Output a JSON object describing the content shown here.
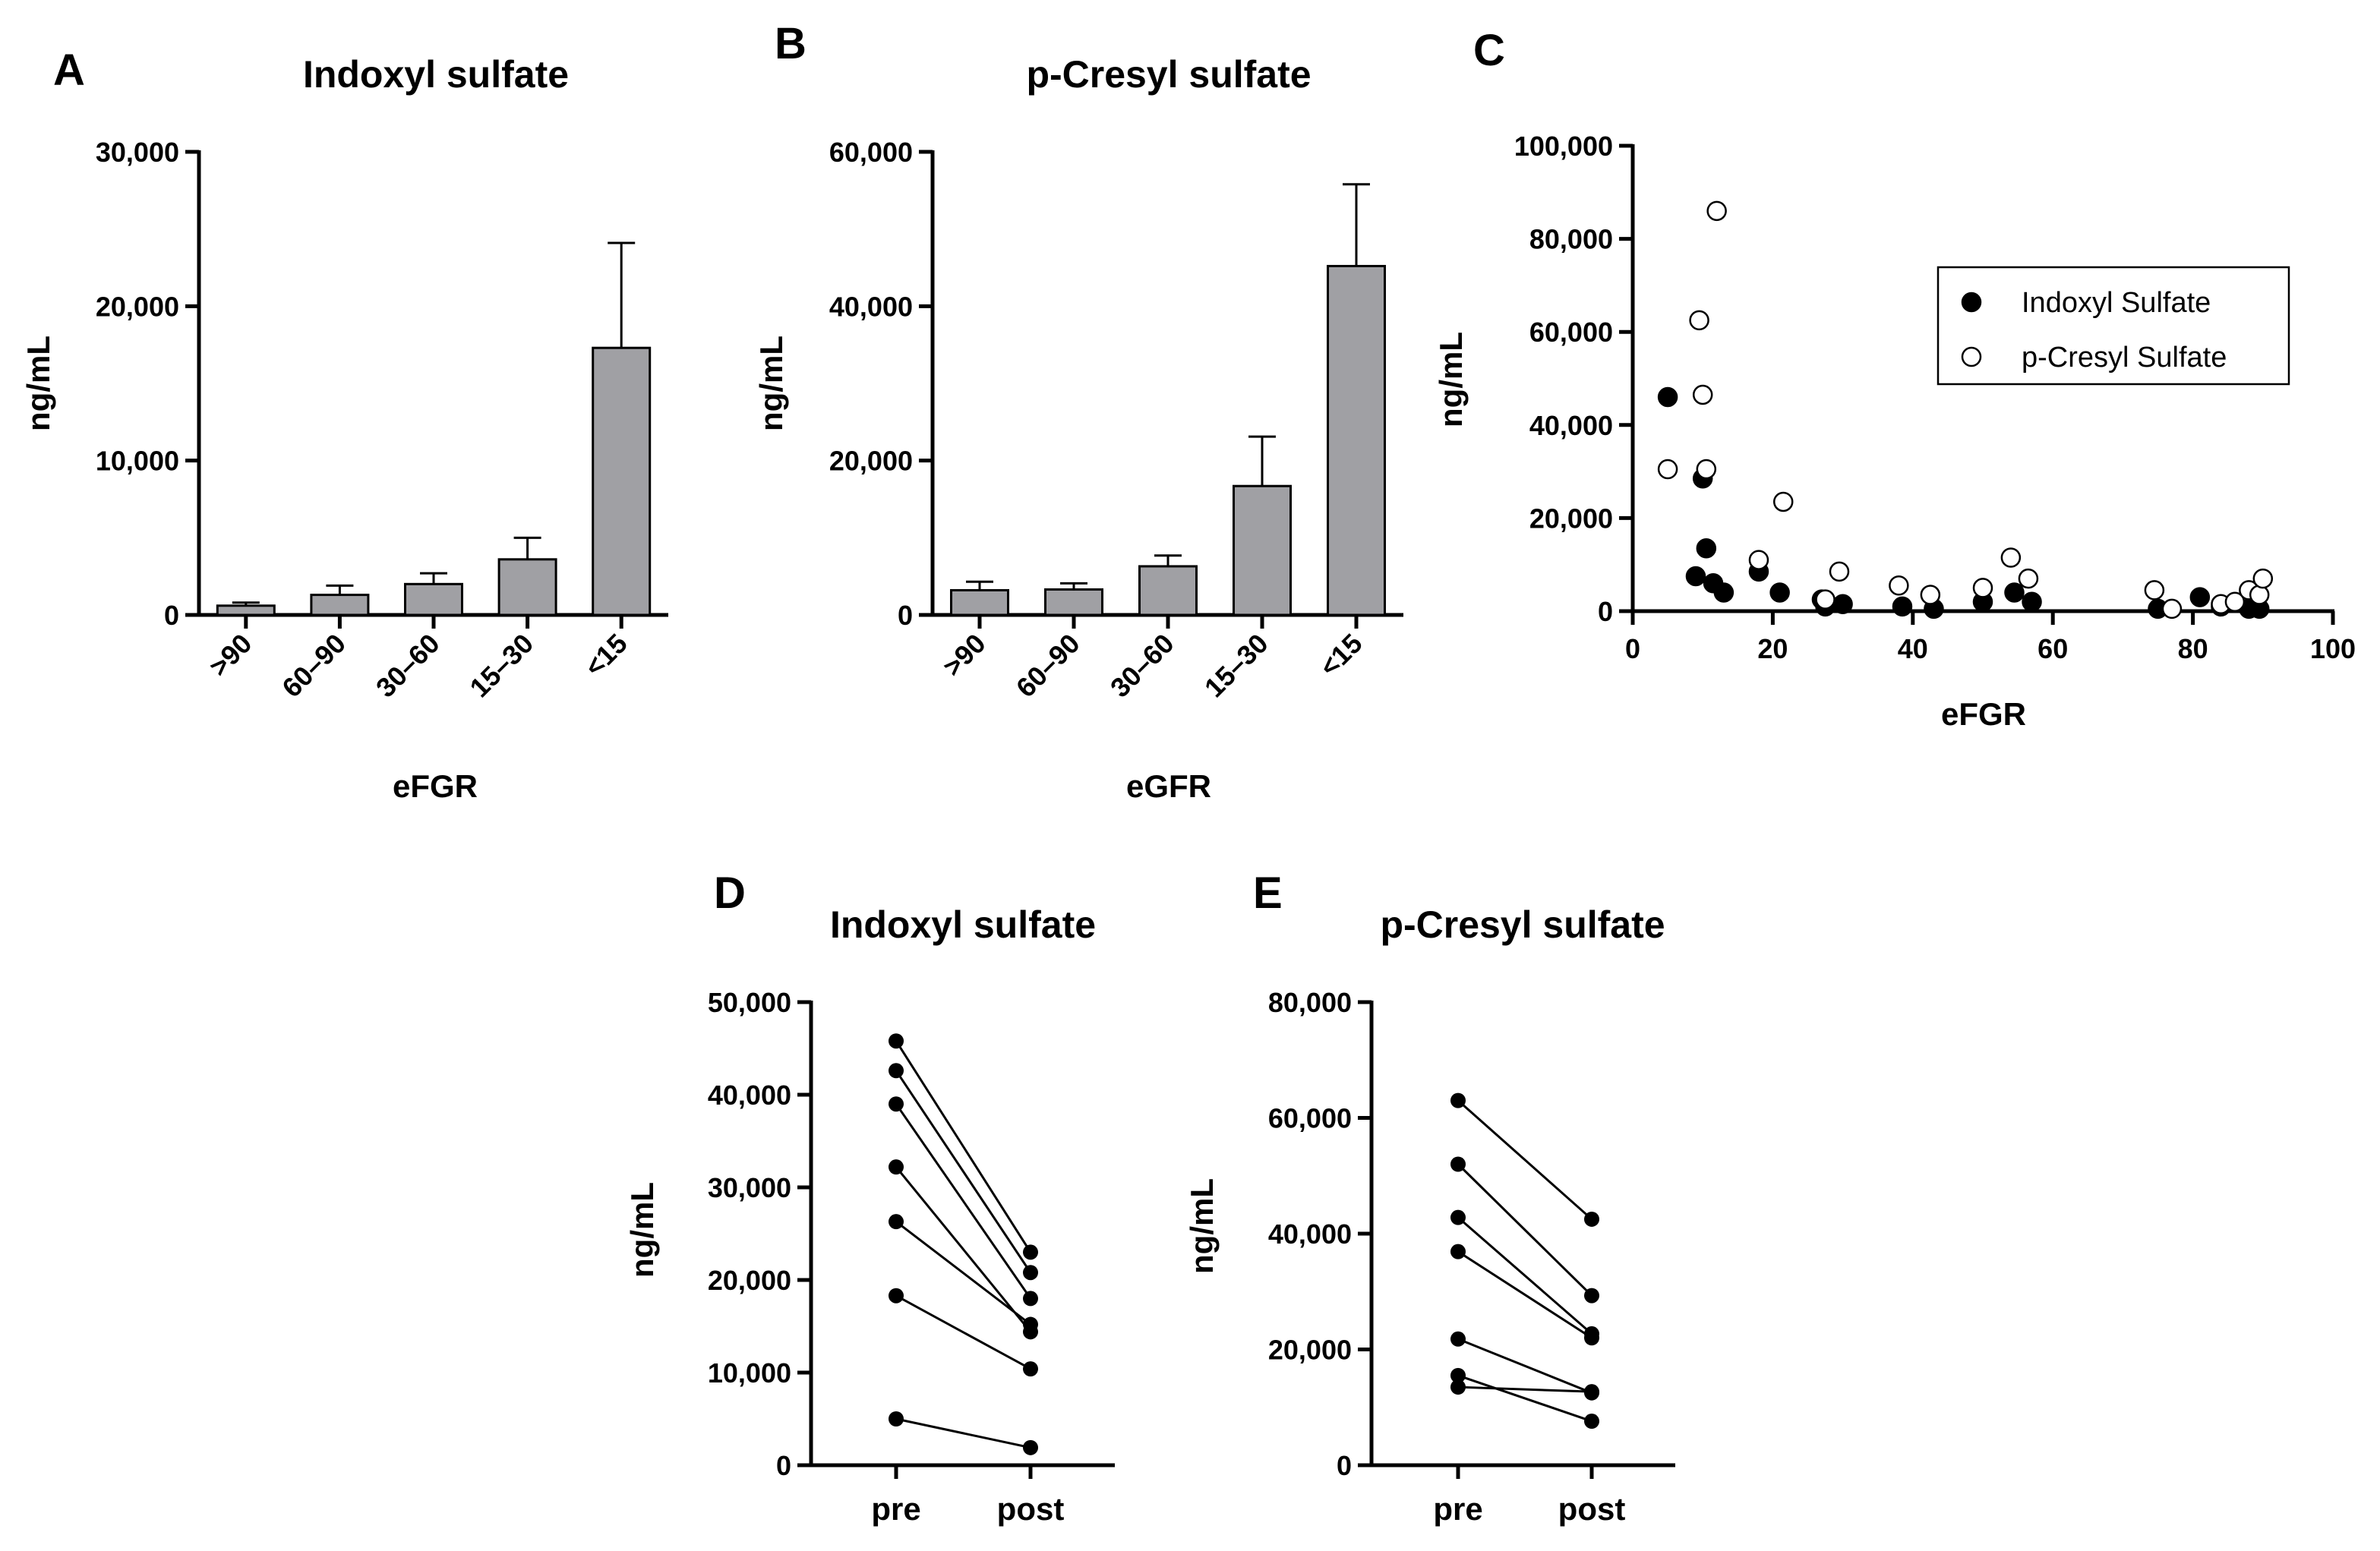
{
  "chart_data": [
    {
      "panel": "A",
      "type": "bar",
      "title": "Indoxyl sulfate",
      "xlabel": "eFGR",
      "ylabel": "ng/mL",
      "categories": [
        ">90",
        "60–90",
        "30–60",
        "15–30",
        "<15"
      ],
      "values": [
        600,
        1300,
        2000,
        3600,
        17300
      ],
      "errors": [
        200,
        600,
        700,
        1400,
        6800
      ],
      "ylim": [
        0,
        30000
      ],
      "yticks": [
        0,
        10000,
        20000,
        30000
      ],
      "ytick_labels": [
        "0",
        "10,000",
        "20,000",
        "30,000"
      ],
      "bar_color": "#a0a0a4"
    },
    {
      "panel": "B",
      "type": "bar",
      "title": "p-Cresyl sulfate",
      "xlabel": "eGFR",
      "ylabel": "ng/mL",
      "categories": [
        ">90",
        "60–90",
        "30–60",
        "15–30",
        "<15"
      ],
      "values": [
        3200,
        3300,
        6300,
        16700,
        45200
      ],
      "errors": [
        1100,
        800,
        1400,
        6400,
        10600
      ],
      "ylim": [
        0,
        60000
      ],
      "yticks": [
        0,
        20000,
        40000,
        60000
      ],
      "ytick_labels": [
        "0",
        "20,000",
        "40,000",
        "60,000"
      ],
      "bar_color": "#a0a0a4"
    },
    {
      "panel": "C",
      "type": "scatter",
      "xlabel": "eFGR",
      "ylabel": "ng/mL",
      "xlim": [
        0,
        100
      ],
      "ylim": [
        0,
        100000
      ],
      "xticks": [
        0,
        20,
        40,
        60,
        80,
        100
      ],
      "xtick_labels": [
        "0",
        "20",
        "40",
        "60",
        "80",
        "100"
      ],
      "yticks": [
        0,
        20000,
        40000,
        60000,
        80000,
        100000
      ],
      "ytick_labels": [
        "0",
        "20,000",
        "40,000",
        "60,000",
        "80,000",
        "100,000"
      ],
      "legend_position": "top-right",
      "series": [
        {
          "name": "Indoxyl Sulfate",
          "marker": "filled-circle",
          "x": [
            5,
            9,
            10,
            10.5,
            11.5,
            13,
            18,
            21,
            27,
            27.5,
            30,
            38.5,
            43,
            50,
            54.5,
            57,
            75,
            81,
            84,
            88,
            89.5
          ],
          "y": [
            46000,
            7500,
            28500,
            13500,
            6000,
            4000,
            8500,
            4000,
            2500,
            1000,
            1500,
            1000,
            500,
            2000,
            4000,
            2000,
            500,
            3000,
            1000,
            500,
            500
          ]
        },
        {
          "name": "p-Cresyl Sulfate",
          "marker": "open-circle",
          "x": [
            5,
            9.5,
            10,
            10.5,
            12,
            18,
            21.5,
            27.5,
            29.5,
            38,
            42.5,
            50,
            54,
            56.5,
            74.5,
            77,
            84,
            86,
            88,
            89.5,
            90
          ],
          "y": [
            30500,
            62500,
            46500,
            30500,
            86000,
            11000,
            23500,
            2500,
            8500,
            5500,
            3500,
            5000,
            11500,
            7000,
            4500,
            500,
            1500,
            2000,
            4500,
            3500,
            7000
          ]
        }
      ]
    },
    {
      "panel": "D",
      "type": "line",
      "title": "Indoxyl sulfate",
      "ylabel": "ng/mL",
      "categories": [
        "pre",
        "post"
      ],
      "ylim": [
        0,
        50000
      ],
      "yticks": [
        0,
        10000,
        20000,
        30000,
        40000,
        50000
      ],
      "ytick_labels": [
        "0",
        "10,000",
        "20,000",
        "30,000",
        "40,000",
        "50,000"
      ],
      "pairs": [
        [
          45800,
          23000
        ],
        [
          42600,
          20800
        ],
        [
          39000,
          18000
        ],
        [
          32200,
          14400
        ],
        [
          26300,
          15200
        ],
        [
          18300,
          10400
        ],
        [
          5000,
          1900
        ]
      ]
    },
    {
      "panel": "E",
      "type": "line",
      "title": "p-Cresyl sulfate",
      "ylabel": "ng/mL",
      "categories": [
        "pre",
        "post"
      ],
      "ylim": [
        0,
        80000
      ],
      "yticks": [
        0,
        20000,
        40000,
        60000,
        80000
      ],
      "ytick_labels": [
        "0",
        "20,000",
        "40,000",
        "60,000",
        "80,000"
      ],
      "pairs": [
        [
          63000,
          42500
        ],
        [
          52000,
          29300
        ],
        [
          42800,
          22700
        ],
        [
          36900,
          22000
        ],
        [
          21800,
          12500
        ],
        [
          15500,
          7600
        ],
        [
          13500,
          12700
        ]
      ]
    }
  ]
}
